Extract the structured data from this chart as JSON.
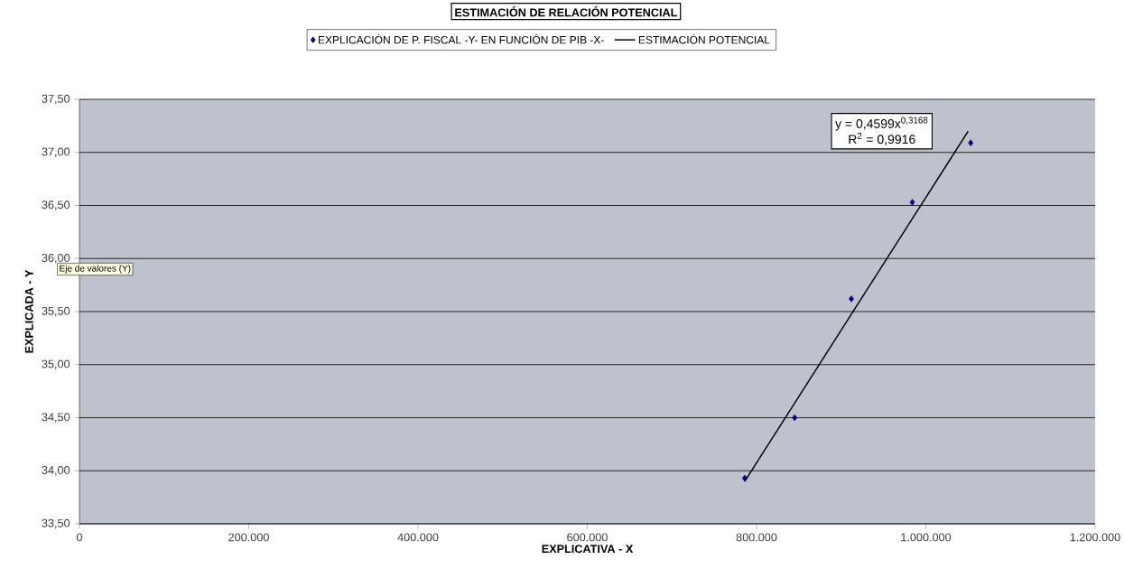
{
  "chart_data": {
    "type": "scatter",
    "title": "ESTIMACIÓN DE RELACIÓN POTENCIAL",
    "xlabel": "EXPLICATIVA - X",
    "ylabel": "EXPLICADA - Y",
    "series": [
      {
        "name": "EXPLICACIÓN DE P. FISCAL -Y- EN FUNCIÓN DE PIB -X-",
        "color": "#000080",
        "marker": "diamond",
        "x": [
          786000,
          845000,
          912000,
          984000,
          1053000
        ],
        "values": [
          33.93,
          34.5,
          35.62,
          36.53,
          37.09
        ]
      },
      {
        "name": "ESTIMACIÓN POTENCIAL",
        "type": "line",
        "color": "#000000",
        "line_style": "solid",
        "x": [
          786000,
          1050000
        ],
        "values": [
          33.9,
          37.2
        ]
      }
    ],
    "xlim": [
      0,
      1200000
    ],
    "ylim": [
      33.5,
      37.5
    ],
    "xticks": [
      0,
      {
        "value": 200000,
        "label": "200.000"
      },
      {
        "value": 400000,
        "label": "400.000"
      },
      {
        "value": 600000,
        "label": "600.000"
      },
      {
        "value": 800000,
        "label": "800.000"
      },
      {
        "value": 1000000,
        "label": "1.000.000"
      },
      {
        "value": 1200000,
        "label": "1.200.000"
      }
    ],
    "yticks": [
      {
        "value": 33.5,
        "label": "33,50"
      },
      {
        "value": 34,
        "label": "34,00"
      },
      {
        "value": 34.5,
        "label": "34,50"
      },
      {
        "value": 35,
        "label": "35,00"
      },
      {
        "value": 35.5,
        "label": "35,50"
      },
      {
        "value": 36,
        "label": "36,00"
      },
      {
        "value": 36.5,
        "label": "36,50"
      },
      {
        "value": 37,
        "label": "37,00"
      },
      {
        "value": 37.5,
        "label": "37,50"
      }
    ],
    "grid": "y",
    "legend": "top",
    "annotations": [
      "y = 0,4599x$^{0,3168}$",
      "R$^{2}$ = 0,9916",
      "Eje de valores (Y)"
    ]
  }
}
